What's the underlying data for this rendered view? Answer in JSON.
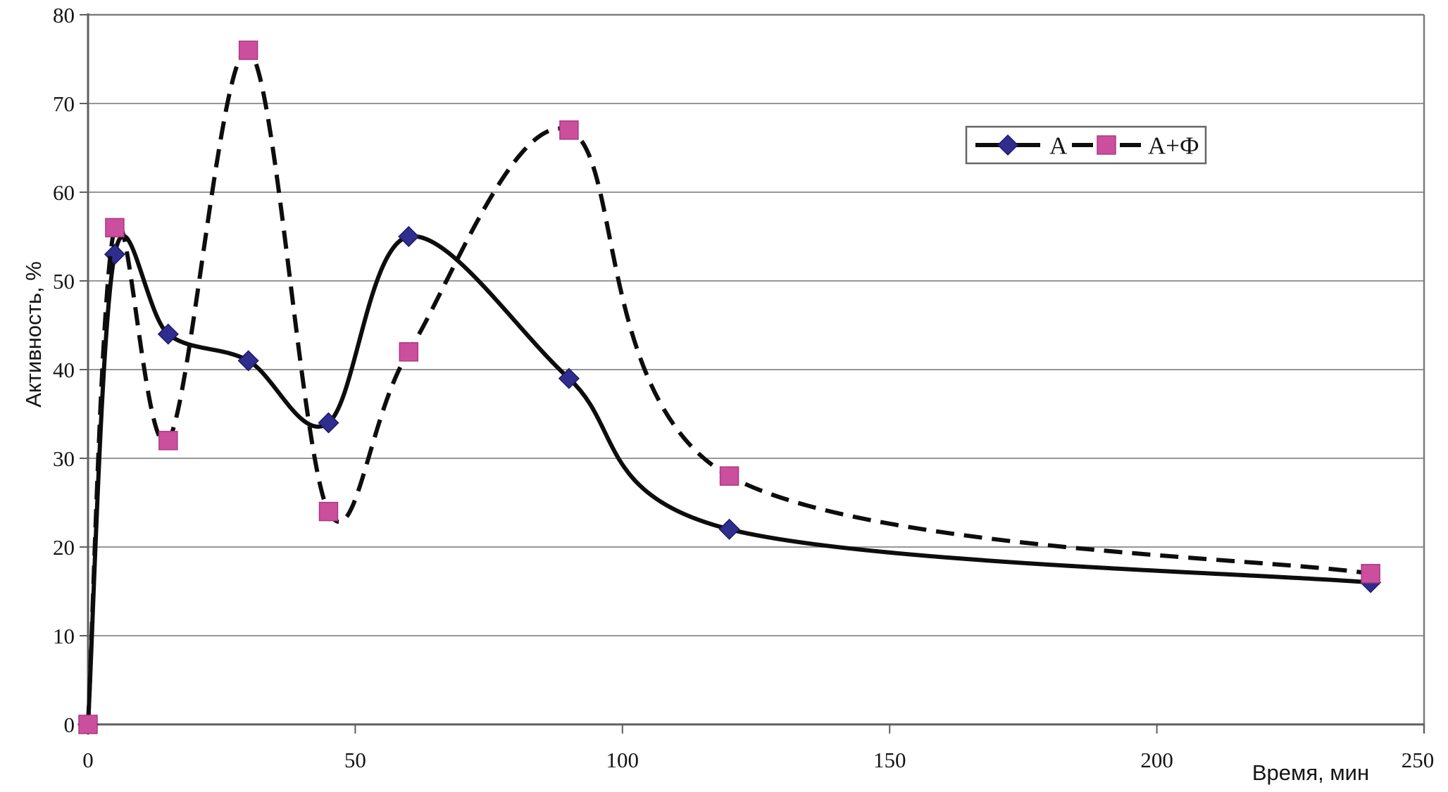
{
  "chart_data": {
    "type": "line",
    "title": "",
    "xlabel": "Время, мин",
    "ylabel": "Активность, %",
    "x": [
      0,
      5,
      15,
      30,
      45,
      60,
      90,
      120,
      240
    ],
    "series": [
      {
        "name": "А",
        "line_style": "solid",
        "marker": "diamond",
        "marker_color": "#2f2d8e",
        "marker_edge": "#1d1b66",
        "values": [
          0,
          53,
          44,
          41,
          34,
          55,
          39,
          22,
          16
        ]
      },
      {
        "name": "А+Ф",
        "line_style": "dashed",
        "marker": "square",
        "marker_color": "#cc4f9e",
        "marker_edge": "#a93a85",
        "values": [
          0,
          56,
          32,
          76,
          24,
          42,
          67,
          28,
          17
        ]
      }
    ],
    "xlim": [
      0,
      250
    ],
    "ylim": [
      0,
      80
    ],
    "xticks": [
      0,
      50,
      100,
      150,
      200,
      250
    ],
    "yticks": [
      0,
      10,
      20,
      30,
      40,
      50,
      60,
      70,
      80
    ],
    "grid": "horizontal-only",
    "legend_position": "inside-top-right"
  },
  "colors": {
    "line": "#0d0d0d",
    "gridline": "#979797",
    "plot_border": "#7d7d7d",
    "axis": "#5f5f5f",
    "background": "#ffffff"
  },
  "legend": {
    "items": [
      {
        "label": "А"
      },
      {
        "label": "А+Ф"
      }
    ]
  }
}
